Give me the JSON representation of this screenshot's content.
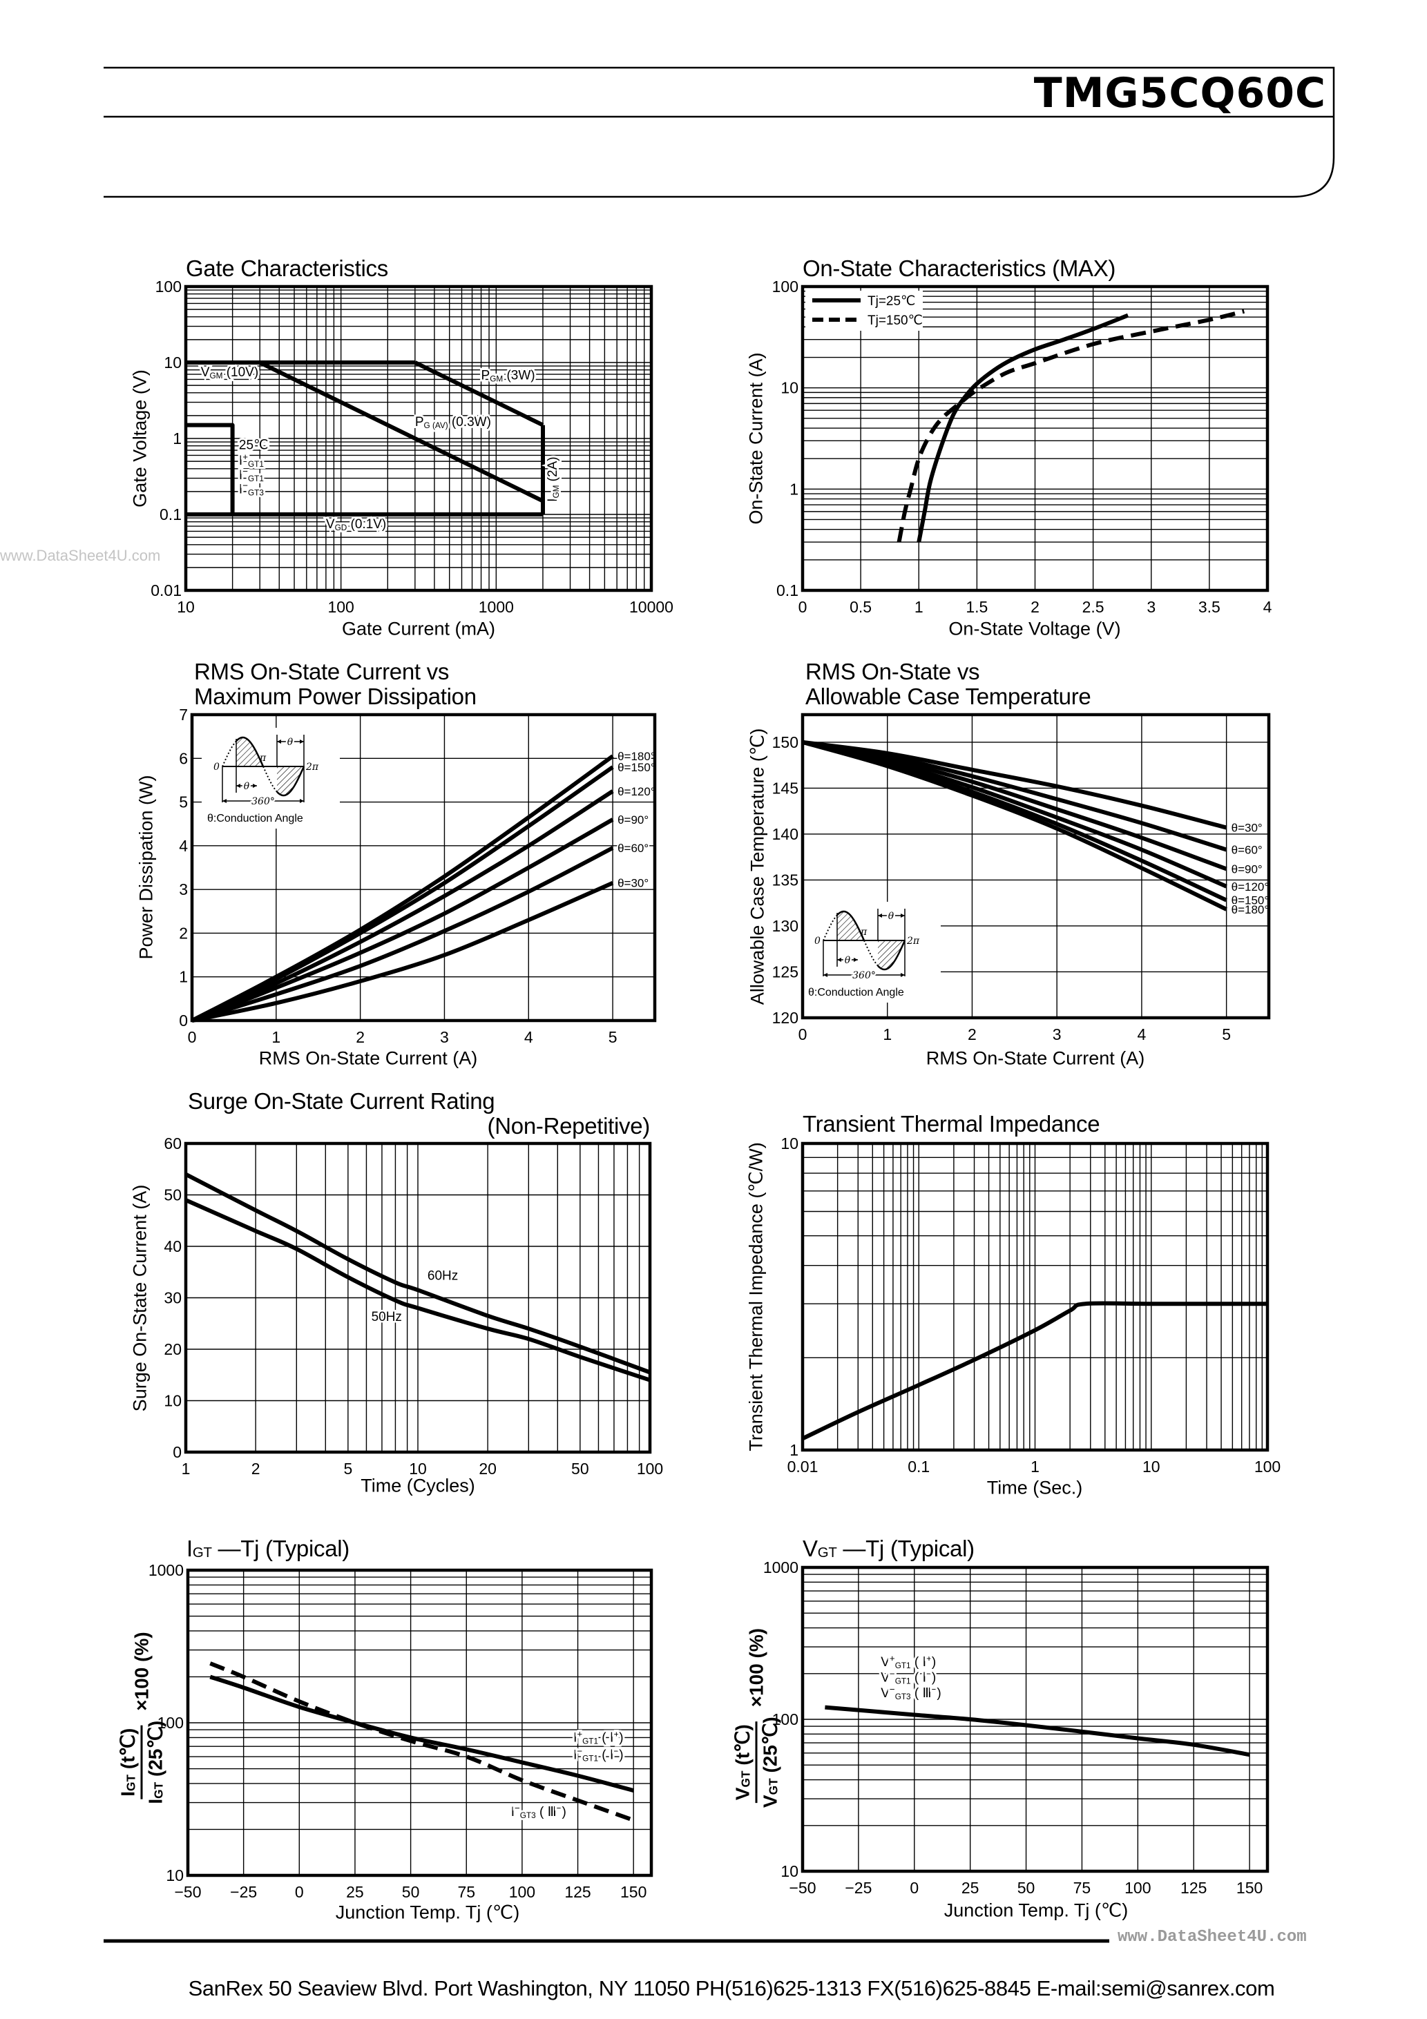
{
  "header": {
    "part_number": "TMG5CQ60C"
  },
  "watermark": {
    "left": "www.DataSheet4U.com",
    "footer": "www.DataSheet4U.com"
  },
  "footer": {
    "address": "SanRex 50 Seaview Blvd. Port Washington, NY 11050 PH(516)625-1313 FX(516)625-8845 E-mail:semi@sanrex.com"
  },
  "chart_data": [
    {
      "type": "line",
      "title": "Gate Characteristics",
      "xlabel": "Gate Current (mA)",
      "ylabel": "Gate Voltage (V)",
      "xscale": "log",
      "yscale": "log",
      "xlim": [
        10,
        10000
      ],
      "ylim": [
        0.01,
        100
      ],
      "xticks": [
        10,
        100,
        1000,
        10000
      ],
      "yticks": [
        0.01,
        0.1,
        1,
        10,
        100
      ],
      "grid": true,
      "series": [
        {
          "style": "solid",
          "x": [
            10,
            300
          ],
          "y": [
            10,
            10
          ]
        },
        {
          "style": "solid",
          "x": [
            300,
            2000
          ],
          "y": [
            10,
            1.5
          ]
        },
        {
          "style": "solid",
          "x": [
            2000,
            2000
          ],
          "y": [
            1.5,
            0.1
          ]
        },
        {
          "style": "solid",
          "x": [
            30,
            2000
          ],
          "y": [
            10,
            0.15
          ]
        },
        {
          "style": "solid",
          "x": [
            10,
            2000
          ],
          "y": [
            0.1,
            0.1
          ]
        },
        {
          "style": "solid",
          "x": [
            10,
            20,
            20
          ],
          "y": [
            1.5,
            1.5,
            0.1
          ]
        }
      ],
      "annotations": [
        [
          [
            "V",
            ""
          ],
          [
            "GM",
            "sub"
          ],
          [
            " (10V)",
            ""
          ]
        ],
        [
          [
            "P",
            ""
          ],
          [
            "GM",
            "sub"
          ],
          [
            " (3W)",
            ""
          ]
        ],
        [
          [
            "P",
            ""
          ],
          [
            "G (AV)",
            "sub"
          ],
          [
            " (0.3W)",
            ""
          ]
        ],
        [
          [
            "I",
            ""
          ],
          [
            "GM",
            "sub"
          ],
          [
            " (2A)",
            ""
          ]
        ],
        [
          [
            "V",
            ""
          ],
          [
            "GD",
            "sub"
          ],
          [
            " (0.1V)",
            ""
          ]
        ],
        [
          [
            "25℃",
            ""
          ]
        ],
        [
          [
            "I",
            ""
          ],
          [
            "+",
            "sup"
          ],
          [
            "GT1",
            "sub"
          ]
        ],
        [
          [
            "I",
            ""
          ],
          [
            "−",
            "sup"
          ],
          [
            "GT1",
            "sub"
          ]
        ],
        [
          [
            "I",
            ""
          ],
          [
            "−",
            "sup"
          ],
          [
            "GT3",
            "sub"
          ]
        ]
      ]
    },
    {
      "type": "line",
      "title": "On-State Characteristics (MAX)",
      "xlabel": "On-State Voltage (V)",
      "ylabel": "On-State Current (A)",
      "xscale": "linear",
      "yscale": "log",
      "xlim": [
        0,
        4
      ],
      "ylim": [
        0.1,
        100
      ],
      "xticks": [
        0,
        0.5,
        1,
        1.5,
        2,
        2.5,
        3,
        3.5,
        4
      ],
      "yticks": [
        0.1,
        1,
        10,
        100
      ],
      "grid": true,
      "legend": "top-left",
      "series": [
        {
          "name": "Tj=25℃",
          "style": "solid",
          "x": [
            1.0,
            1.05,
            1.1,
            1.2,
            1.3,
            1.4,
            1.5,
            1.65,
            1.8,
            2.0,
            2.25,
            2.5,
            2.8
          ],
          "y": [
            0.3,
            0.6,
            1.2,
            2.8,
            5.5,
            8.2,
            11,
            15,
            19,
            24,
            30,
            38,
            52
          ]
        },
        {
          "name": "Tj=150℃",
          "style": "dashed",
          "x": [
            0.83,
            0.88,
            0.93,
            1.0,
            1.1,
            1.2,
            1.35,
            1.5,
            1.75,
            2.0,
            2.5,
            3.0,
            3.5,
            3.8
          ],
          "y": [
            0.3,
            0.6,
            1.0,
            2.0,
            3.5,
            5.0,
            7.0,
            9.5,
            14,
            17.5,
            27,
            36,
            47,
            57
          ]
        }
      ]
    },
    {
      "type": "line",
      "title_lines": [
        "RMS On-State Current vs",
        "Maximum Power Dissipation"
      ],
      "xlabel": "RMS On-State Current (A)",
      "ylabel": "Power Dissipation (W)",
      "xscale": "linear",
      "yscale": "linear",
      "xlim": [
        0,
        5.5
      ],
      "ylim": [
        0,
        7
      ],
      "xticks": [
        0,
        1,
        2,
        3,
        4,
        5
      ],
      "yticks": [
        0,
        1,
        2,
        3,
        4,
        5,
        6,
        7
      ],
      "grid": true,
      "series": [
        {
          "name": "θ=180°",
          "x": [
            0,
            1,
            2,
            3,
            4,
            5
          ],
          "y": [
            0,
            1.0,
            2.08,
            3.3,
            4.65,
            6.05
          ]
        },
        {
          "name": "θ=150°",
          "x": [
            0,
            1,
            2,
            3,
            4,
            5
          ],
          "y": [
            0,
            0.95,
            2.0,
            3.15,
            4.45,
            5.8
          ]
        },
        {
          "name": "θ=120°",
          "x": [
            0,
            1,
            2,
            3,
            4,
            5
          ],
          "y": [
            0,
            0.85,
            1.8,
            2.85,
            4.0,
            5.25
          ]
        },
        {
          "name": "θ=90°",
          "x": [
            0,
            1,
            2,
            3,
            4,
            5
          ],
          "y": [
            0,
            0.75,
            1.55,
            2.45,
            3.5,
            4.6
          ]
        },
        {
          "name": "θ=60°",
          "x": [
            0,
            1,
            2,
            3,
            4,
            5
          ],
          "y": [
            0,
            0.6,
            1.25,
            2.05,
            2.95,
            3.95
          ]
        },
        {
          "name": "θ=30°",
          "x": [
            0,
            1,
            2,
            3,
            4,
            5
          ],
          "y": [
            0,
            0.4,
            0.9,
            1.5,
            2.3,
            3.15
          ]
        }
      ],
      "inset": {
        "zero": "0",
        "pi": "π",
        "two_pi": "2π",
        "theta": "θ",
        "period": "360°",
        "caption": "θ:Conduction Angle"
      }
    },
    {
      "type": "line",
      "title_lines": [
        "RMS On-State vs",
        "Allowable Case Temperature"
      ],
      "xlabel": "RMS On-State Current (A)",
      "ylabel": "Allowable Case Temperature (℃)",
      "xscale": "linear",
      "yscale": "linear",
      "xlim": [
        0,
        5.5
      ],
      "ylim": [
        120,
        153
      ],
      "xticks": [
        0,
        1,
        2,
        3,
        4,
        5
      ],
      "yticks": [
        120,
        125,
        130,
        135,
        140,
        145,
        150
      ],
      "grid": true,
      "series": [
        {
          "name": "θ=30°",
          "x": [
            0,
            1,
            2,
            3,
            4,
            5
          ],
          "y": [
            150,
            148.8,
            147.0,
            145.2,
            143.1,
            140.7
          ]
        },
        {
          "name": "θ=60°",
          "x": [
            0,
            1,
            2,
            3,
            4,
            5
          ],
          "y": [
            150,
            148.5,
            146.3,
            143.8,
            141.2,
            138.3
          ]
        },
        {
          "name": "θ=90°",
          "x": [
            0,
            1,
            2,
            3,
            4,
            5
          ],
          "y": [
            150,
            148.2,
            145.7,
            142.7,
            139.6,
            136.2
          ]
        },
        {
          "name": "θ=120°",
          "x": [
            0,
            1,
            2,
            3,
            4,
            5
          ],
          "y": [
            150,
            147.9,
            145.1,
            141.8,
            138.3,
            134.3
          ]
        },
        {
          "name": "θ=150°",
          "x": [
            0,
            1,
            2,
            3,
            4,
            5
          ],
          "y": [
            150,
            147.6,
            144.6,
            141.1,
            137.1,
            132.8
          ]
        },
        {
          "name": "θ=180°",
          "x": [
            0,
            1,
            2,
            3,
            4,
            5
          ],
          "y": [
            150,
            147.4,
            144.2,
            140.6,
            136.3,
            131.8
          ]
        }
      ],
      "inset": {
        "zero": "0",
        "pi": "π",
        "two_pi": "2π",
        "theta": "θ",
        "period": "360°",
        "caption": "θ:Conduction Angle"
      }
    },
    {
      "type": "line",
      "title_lines": [
        "Surge On-State Current Rating",
        "(Non-Repetitive)"
      ],
      "xlabel": "Time (Cycles)",
      "ylabel": "Surge On-State Current (A)",
      "xscale": "log",
      "yscale": "linear",
      "xlim": [
        1,
        100
      ],
      "ylim": [
        0,
        60
      ],
      "xticks": [
        1,
        2,
        5,
        10,
        20,
        50,
        100
      ],
      "yticks": [
        0,
        10,
        20,
        30,
        40,
        50,
        60
      ],
      "grid": true,
      "series": [
        {
          "name": "60Hz",
          "x": [
            1,
            2,
            3,
            5,
            8,
            10,
            20,
            30,
            50,
            100
          ],
          "y": [
            54,
            47,
            43,
            37.5,
            33,
            31.5,
            26.5,
            24,
            20.5,
            15.5
          ]
        },
        {
          "name": "50Hz",
          "x": [
            1,
            2,
            3,
            5,
            8,
            10,
            20,
            30,
            50,
            100
          ],
          "y": [
            49,
            43,
            39.5,
            34,
            29.5,
            28,
            24,
            22,
            18.5,
            14
          ]
        }
      ]
    },
    {
      "type": "line",
      "title": "Transient Thermal Impedance",
      "xlabel": "Time (Sec.)",
      "ylabel": "Transient Thermal Impedance (℃/W)",
      "xscale": "log",
      "yscale": "log",
      "xlim": [
        0.01,
        100
      ],
      "ylim": [
        1,
        10
      ],
      "xticks": [
        0.01,
        0.1,
        1,
        10,
        100
      ],
      "yticks": [
        1,
        10
      ],
      "grid": true,
      "series": [
        {
          "x": [
            0.01,
            0.03,
            0.1,
            0.3,
            1,
            2,
            2.7,
            10,
            100
          ],
          "y": [
            1.09,
            1.33,
            1.63,
            1.97,
            2.46,
            2.85,
            3.0,
            3.0,
            3.0
          ]
        }
      ]
    },
    {
      "type": "line",
      "title_parts": [
        "I",
        "GT",
        " —Tj (Typical)"
      ],
      "xlabel": "Junction Temp. Tj (℃)",
      "ylabel_numerator": [
        "I",
        "GT",
        " (t℃)"
      ],
      "ylabel_denominator": [
        "I",
        "GT",
        " (25℃)"
      ],
      "ylabel_suffix": "×100 (%)",
      "xscale": "linear",
      "yscale": "log",
      "xlim": [
        -50,
        158
      ],
      "ylim": [
        10,
        1000
      ],
      "xticks": [
        -50,
        -25,
        0,
        25,
        50,
        75,
        100,
        125,
        150
      ],
      "yticks": [
        10,
        100,
        1000
      ],
      "grid": true,
      "series": [
        {
          "style": "solid",
          "x": [
            -40,
            -25,
            0,
            25,
            50,
            75,
            100,
            125,
            150
          ],
          "y": [
            200,
            170,
            127,
            100,
            80,
            67,
            55,
            45,
            36
          ]
        },
        {
          "style": "dashed",
          "x": [
            -40,
            -25,
            0,
            25,
            50,
            75,
            100,
            125,
            150
          ],
          "y": [
            245,
            200,
            138,
            100,
            76,
            60,
            42,
            31,
            23
          ]
        }
      ],
      "annotations": [
        [
          [
            "I",
            ""
          ],
          [
            "+",
            "sup"
          ],
          [
            "GT1",
            "sub"
          ],
          [
            " ( Ⅰ",
            ""
          ],
          [
            "+",
            "sup"
          ],
          [
            ")",
            ""
          ]
        ],
        [
          [
            "I",
            ""
          ],
          [
            "−",
            "sup"
          ],
          [
            "GT1",
            "sub"
          ],
          [
            " ( Ⅰ",
            ""
          ],
          [
            "−",
            "sup"
          ],
          [
            ")",
            ""
          ]
        ],
        [
          [
            "I",
            ""
          ],
          [
            "−",
            "sup"
          ],
          [
            "GT3",
            "sub"
          ],
          [
            " ( Ⅲ",
            ""
          ],
          [
            "−",
            "sup"
          ],
          [
            ")",
            ""
          ]
        ]
      ]
    },
    {
      "type": "line",
      "title_parts": [
        "V",
        "GT",
        " —Tj (Typical)"
      ],
      "xlabel": "Junction Temp. Tj (℃)",
      "ylabel_numerator": [
        "V",
        "GT",
        " (t℃)"
      ],
      "ylabel_denominator": [
        "V",
        "GT",
        " (25℃)"
      ],
      "ylabel_suffix": "×100 (%)",
      "xscale": "linear",
      "yscale": "log",
      "xlim": [
        -50,
        158
      ],
      "ylim": [
        10,
        1000
      ],
      "xticks": [
        -50,
        -25,
        0,
        25,
        50,
        75,
        100,
        125,
        150
      ],
      "yticks": [
        10,
        100,
        1000
      ],
      "grid": true,
      "series": [
        {
          "style": "solid",
          "x": [
            -40,
            -25,
            0,
            25,
            50,
            75,
            100,
            125,
            150
          ],
          "y": [
            120,
            115,
            107,
            100,
            91.5,
            83,
            75,
            68,
            58.5
          ]
        }
      ],
      "annotations": [
        [
          [
            "V",
            ""
          ],
          [
            "+",
            "sup"
          ],
          [
            "GT1",
            "sub"
          ],
          [
            " ( Ⅰ",
            ""
          ],
          [
            "+",
            "sup"
          ],
          [
            ")",
            ""
          ]
        ],
        [
          [
            "V",
            ""
          ],
          [
            "−",
            "sup"
          ],
          [
            "GT1",
            "sub"
          ],
          [
            " ( Ⅰ",
            ""
          ],
          [
            "−",
            "sup"
          ],
          [
            ")",
            ""
          ]
        ],
        [
          [
            "V",
            ""
          ],
          [
            "−",
            "sup"
          ],
          [
            "GT3",
            "sub"
          ],
          [
            " ( Ⅲ",
            ""
          ],
          [
            "−",
            "sup"
          ],
          [
            ")",
            ""
          ]
        ]
      ]
    }
  ]
}
